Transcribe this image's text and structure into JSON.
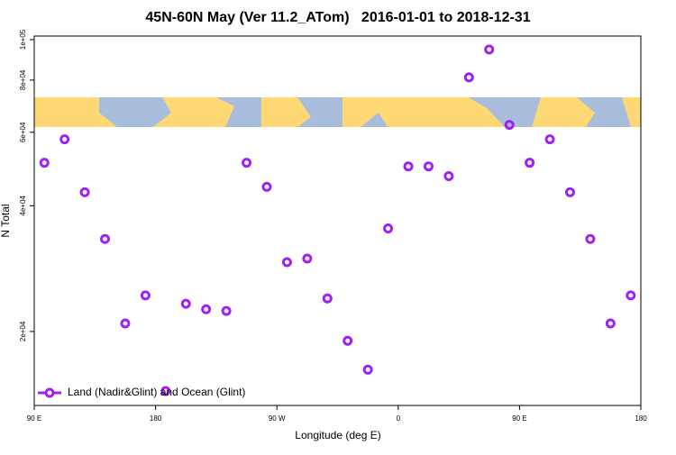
{
  "chart_data": {
    "type": "scatter",
    "title": "45N-60N May (Ver 11.2_ATom)   2016-01-01 to 2018-12-31",
    "x_label": "Longitude (deg E)",
    "y_label": "N Total",
    "y_log": true,
    "legend_position": "bottom-left",
    "xlim": [
      90,
      540
    ],
    "xticks": [
      {
        "value": 90,
        "label": "90 E"
      },
      180,
      {
        "value": 270,
        "label": "90 W"
      },
      {
        "value": 360,
        "label": "0"
      },
      {
        "value": 450,
        "label": "90 E"
      },
      {
        "value": 540,
        "label": "180"
      }
    ],
    "ylim": [
      13300,
      102000
    ],
    "yticks": [
      {
        "value": 20000,
        "label": "2e+04"
      },
      {
        "value": 40000,
        "label": "4e+04"
      },
      {
        "value": 60000,
        "label": "6e+04"
      },
      {
        "value": 80000,
        "label": "8e+04"
      },
      {
        "value": 100000,
        "label": "1e+05"
      }
    ],
    "series": [
      {
        "name": "Land (Nadir&Glint) and Ocean (Glint)",
        "color": "#a020f0",
        "x": [
          97.5,
          112.5,
          127.5,
          142.5,
          157.5,
          172.5,
          187.5,
          202.5,
          217.5,
          232.5,
          247.5,
          262.5,
          277.5,
          292.5,
          307.5,
          322.5,
          337.5,
          352.5,
          367.5,
          382.5,
          397.5,
          412.5,
          427.5,
          442.5,
          457.5,
          472.5,
          487.5,
          502.5,
          517.5,
          532.5
        ],
        "values": [
          50700,
          57700,
          43100,
          33300,
          20900,
          24400,
          14400,
          23300,
          22600,
          22400,
          50700,
          44400,
          29300,
          29900,
          24000,
          19000,
          16200,
          35300,
          49700,
          49700,
          47100,
          81200,
          94700,
          62500,
          50700,
          57700,
          43100,
          33300,
          20900,
          24400
        ]
      }
    ]
  }
}
